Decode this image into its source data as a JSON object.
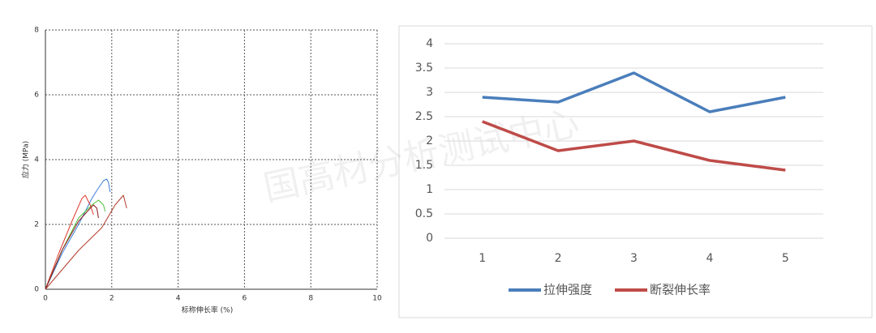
{
  "chart_data": [
    {
      "type": "line",
      "xlabel": "标称伸长率 (%)",
      "ylabel": "应力 (MPa)",
      "xlim": [
        0,
        10
      ],
      "xticks": [
        0,
        2,
        4,
        6,
        8,
        10
      ],
      "ylim": [
        0,
        8
      ],
      "yticks": [
        0,
        2,
        4,
        6,
        8
      ],
      "grid": true,
      "series": [
        {
          "color": "#3a7fd6",
          "x": [
            0,
            0.5,
            1.0,
            1.4,
            1.55,
            1.75,
            1.85,
            1.9,
            1.95
          ],
          "values": [
            0,
            1.1,
            2.0,
            2.8,
            3.05,
            3.35,
            3.4,
            3.3,
            3.0
          ]
        },
        {
          "color": "#4fbf3a",
          "x": [
            0,
            0.5,
            1.0,
            1.4,
            1.6,
            1.75,
            1.8
          ],
          "values": [
            0,
            1.2,
            2.2,
            2.6,
            2.75,
            2.6,
            2.4
          ]
        },
        {
          "color": "#e0392e",
          "x": [
            0,
            0.4,
            0.8,
            1.1,
            1.2,
            1.35,
            1.45
          ],
          "values": [
            0,
            1.1,
            2.1,
            2.8,
            2.9,
            2.6,
            2.3
          ]
        },
        {
          "color": "#8b1a1a",
          "x": [
            0,
            0.5,
            1.0,
            1.35,
            1.45,
            1.55,
            1.6
          ],
          "values": [
            0,
            1.2,
            2.1,
            2.5,
            2.6,
            2.5,
            2.2
          ]
        },
        {
          "color": "#b33a2a",
          "x": [
            0,
            1.0,
            1.7,
            2.1,
            2.35,
            2.45
          ],
          "values": [
            0,
            1.2,
            1.9,
            2.6,
            2.9,
            2.5
          ]
        }
      ]
    },
    {
      "type": "line",
      "watermark": "国高材分析测试中心",
      "categories": [
        "1",
        "2",
        "3",
        "4",
        "5"
      ],
      "ylim": [
        0,
        4
      ],
      "yticks": [
        0,
        0.5,
        1,
        1.5,
        2,
        2.5,
        3,
        3.5,
        4
      ],
      "grid": true,
      "legend": "bottom",
      "series": [
        {
          "name": "拉伸强度",
          "color": "#4a7ebb",
          "values": [
            2.9,
            2.8,
            3.4,
            2.6,
            2.9
          ]
        },
        {
          "name": "断裂伸长率",
          "color": "#be4b48",
          "values": [
            2.4,
            1.8,
            2.0,
            1.6,
            1.4
          ]
        }
      ]
    }
  ]
}
